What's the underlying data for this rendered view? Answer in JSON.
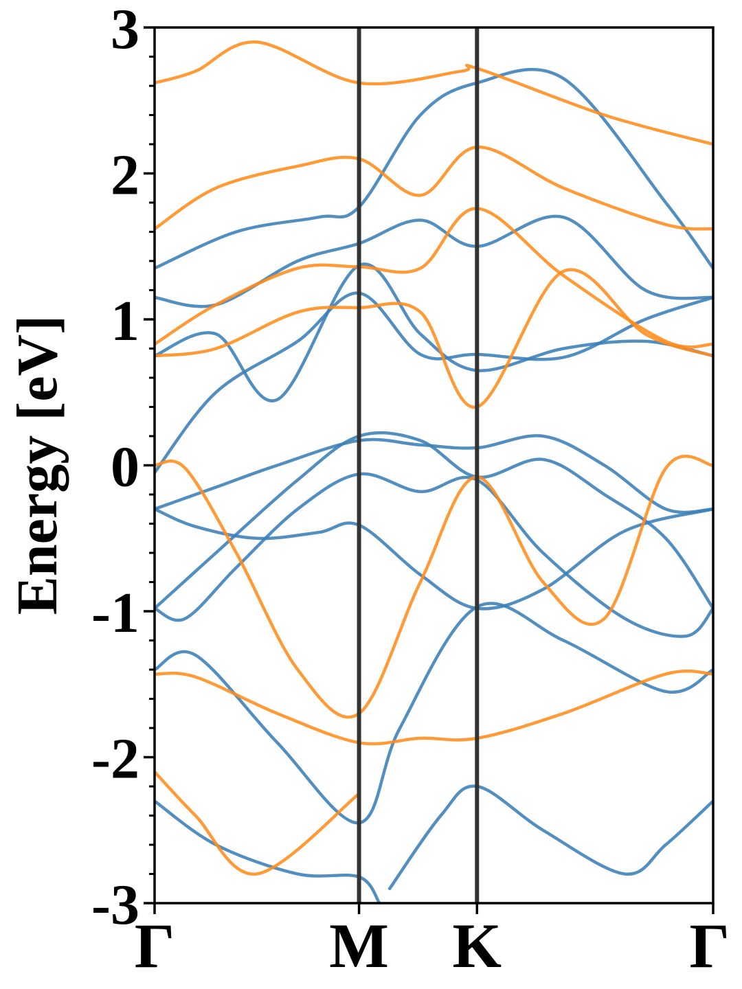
{
  "chart_data": {
    "type": "line",
    "title": "",
    "xlabel": "",
    "ylabel": "Energy [eV]",
    "ylim": [
      -3,
      3
    ],
    "yticks": [
      3,
      2,
      1,
      0,
      -1,
      -2,
      -3
    ],
    "k_path": [
      {
        "label": "Γ",
        "pos": 0.0
      },
      {
        "label": "M",
        "pos": 1.0
      },
      {
        "label": "K",
        "pos": 1.577
      },
      {
        "label": "Γ",
        "pos": 2.732
      }
    ],
    "xlim": [
      0,
      2.732
    ],
    "grid": false,
    "legend": "none",
    "colors": {
      "spin_up": "#3a7fb7",
      "spin_down": "#ff8c1a",
      "symmetry_lines": "#333333"
    },
    "series": [
      {
        "color_key": "spin_up",
        "x": [
          0,
          0.2,
          0.5,
          0.8,
          1.0,
          1.3,
          1.577,
          1.9,
          2.3,
          2.732
        ],
        "y": [
          -0.3,
          -0.42,
          -0.5,
          -0.46,
          -0.41,
          -0.75,
          -0.98,
          -0.85,
          -0.45,
          -0.3
        ]
      },
      {
        "color_key": "spin_up",
        "x": [
          0,
          0.15,
          0.4,
          0.7,
          1.0,
          1.3,
          1.577,
          1.9,
          2.3,
          2.6,
          2.732
        ],
        "y": [
          -0.98,
          -1.05,
          -0.7,
          -0.3,
          -0.06,
          -0.18,
          -0.1,
          -0.6,
          -1.05,
          -1.17,
          -0.98
        ]
      },
      {
        "color_key": "spin_up",
        "x": [
          0,
          0.3,
          0.6,
          1.0,
          1.3,
          1.577,
          1.9,
          2.2,
          2.5,
          2.732
        ],
        "y": [
          -0.3,
          -0.15,
          0.0,
          0.17,
          0.14,
          0.12,
          0.2,
          0.0,
          -0.3,
          -0.3
        ]
      },
      {
        "color_key": "spin_up",
        "x": [
          0,
          0.3,
          0.7,
          1.0,
          1.3,
          1.577,
          1.9,
          2.2,
          2.5,
          2.732
        ],
        "y": [
          -0.98,
          -0.6,
          -0.1,
          0.2,
          0.17,
          -0.08,
          0.04,
          -0.2,
          -0.5,
          -0.98
        ]
      },
      {
        "color_key": "spin_up",
        "x": [
          0,
          0.2,
          0.6,
          1.0,
          1.2,
          1.577,
          2.0,
          2.5,
          2.732
        ],
        "y": [
          -1.4,
          -1.3,
          -1.9,
          -2.45,
          -1.8,
          -0.97,
          -1.2,
          -1.55,
          -1.4
        ]
      },
      {
        "color_key": "spin_up",
        "x": [
          0,
          0.3,
          0.7,
          1.0,
          1.1
        ],
        "y": [
          -2.3,
          -2.6,
          -2.8,
          -2.82,
          -3.0
        ]
      },
      {
        "color_key": "spin_up",
        "x": [
          1.15,
          1.4,
          1.577,
          1.9,
          2.3,
          2.5,
          2.732
        ],
        "y": [
          -2.9,
          -2.4,
          -2.2,
          -2.5,
          -2.8,
          -2.6,
          -2.3
        ]
      },
      {
        "color_key": "spin_up",
        "x": [
          0,
          0.3,
          0.6,
          1.0,
          1.3,
          1.577,
          2.0,
          2.4,
          2.732
        ],
        "y": [
          0.75,
          0.9,
          0.45,
          1.37,
          0.9,
          0.65,
          0.8,
          0.85,
          0.75
        ]
      },
      {
        "color_key": "spin_up",
        "x": [
          0,
          0.3,
          0.7,
          1.0,
          1.3,
          1.577,
          2.0,
          2.4,
          2.732
        ],
        "y": [
          1.15,
          1.1,
          1.4,
          1.52,
          1.68,
          1.5,
          1.7,
          1.2,
          1.15
        ]
      },
      {
        "color_key": "spin_up",
        "x": [
          0,
          0.4,
          0.8,
          1.0,
          1.3,
          1.577,
          2.0,
          2.5,
          2.732
        ],
        "y": [
          1.35,
          1.6,
          1.7,
          1.77,
          2.4,
          2.62,
          2.65,
          1.8,
          1.35
        ]
      },
      {
        "color_key": "spin_up",
        "x": [
          0,
          0.3,
          0.7,
          1.0,
          1.3,
          1.577,
          2.0,
          2.4,
          2.732
        ],
        "y": [
          -0.05,
          0.5,
          0.85,
          1.18,
          0.76,
          0.76,
          0.74,
          1.0,
          1.15
        ]
      },
      {
        "color_key": "spin_down",
        "x": [
          0,
          0.15,
          0.4,
          0.7,
          1.0,
          1.3,
          1.577,
          1.9,
          2.2,
          2.5,
          2.732
        ],
        "y": [
          0.0,
          -0.02,
          -0.6,
          -1.4,
          -1.7,
          -0.8,
          -0.08,
          -0.8,
          -1.05,
          -0.02,
          0.0
        ]
      },
      {
        "color_key": "spin_down",
        "x": [
          0,
          0.2,
          0.6,
          1.0,
          1.3,
          1.577,
          2.0,
          2.5,
          2.732
        ],
        "y": [
          -1.43,
          -1.45,
          -1.7,
          -1.9,
          -1.87,
          -1.87,
          -1.7,
          -1.43,
          -1.43
        ]
      },
      {
        "color_key": "spin_down",
        "x": [
          0,
          0.3,
          0.7,
          1.0,
          1.3,
          1.577,
          2.0,
          2.4,
          2.732
        ],
        "y": [
          0.75,
          0.8,
          1.05,
          1.08,
          1.05,
          0.4,
          1.33,
          0.9,
          0.75
        ]
      },
      {
        "color_key": "spin_down",
        "x": [
          0,
          0.3,
          0.7,
          1.0,
          1.3,
          1.577,
          2.0,
          2.5,
          2.732
        ],
        "y": [
          0.83,
          1.1,
          1.35,
          1.36,
          1.35,
          1.76,
          1.3,
          0.85,
          0.83
        ]
      },
      {
        "color_key": "spin_down",
        "x": [
          0,
          0.3,
          0.7,
          1.0,
          1.3,
          1.577,
          2.0,
          2.5,
          2.732
        ],
        "y": [
          1.62,
          1.9,
          2.05,
          2.1,
          1.85,
          2.18,
          1.9,
          1.65,
          1.62
        ]
      },
      {
        "color_key": "spin_down",
        "x": [
          0,
          0.2,
          0.5,
          1.0,
          1.5,
          1.577,
          2.2,
          2.732
        ],
        "y": [
          2.62,
          2.7,
          2.9,
          2.62,
          2.7,
          2.72,
          2.4,
          2.2
        ]
      },
      {
        "color_key": "spin_down",
        "x": [
          0,
          0.2,
          0.5,
          1.0
        ],
        "y": [
          -2.1,
          -2.4,
          -2.8,
          -2.25
        ]
      }
    ]
  }
}
